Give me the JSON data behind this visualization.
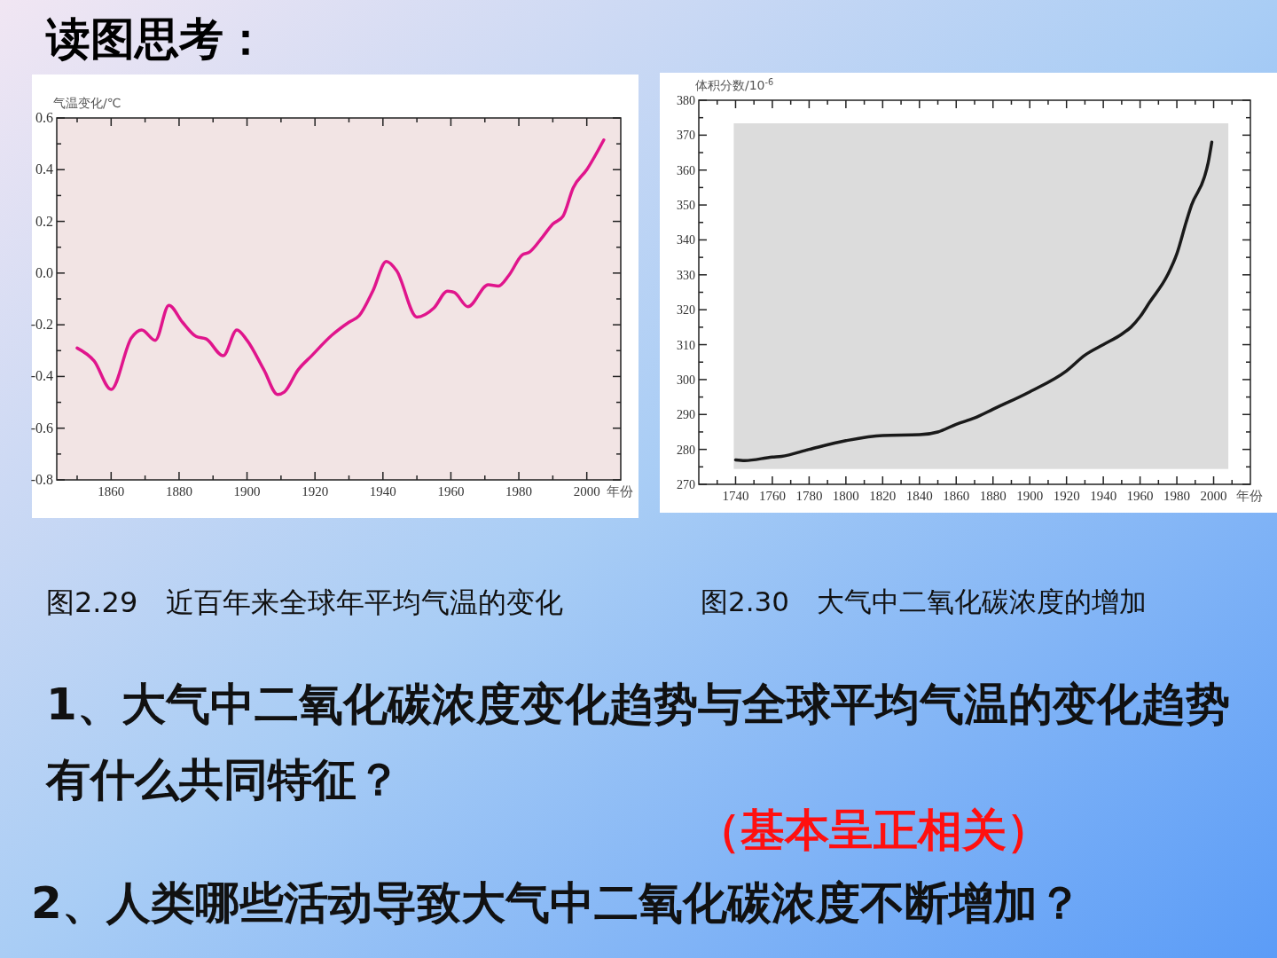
{
  "chart_data": [
    {
      "type": "line",
      "title": "读图思考：",
      "ylabel": "气温变化/℃",
      "xlabel": "年份",
      "annotations": [
        "图2.29　近百年来全球年平均气温的变化"
      ],
      "xlim": [
        1844,
        2010
      ],
      "xticks": [
        {
          "value": 1850,
          "label": null
        },
        1860,
        {
          "value": 1870,
          "label": null
        },
        1880,
        {
          "value": 1890,
          "label": null
        },
        1900,
        {
          "value": 1910,
          "label": null
        },
        1920,
        {
          "value": 1930,
          "label": null
        },
        1940,
        {
          "value": 1950,
          "label": null
        },
        1960,
        {
          "value": 1970,
          "label": null
        },
        1980,
        {
          "value": 1990,
          "label": null
        },
        2000
      ],
      "ylim": [
        -0.8,
        0.6
      ],
      "yticks": [
        -0.8,
        {
          "value": -0.7,
          "label": null
        },
        -0.6,
        {
          "value": -0.5,
          "label": null
        },
        -0.4,
        {
          "value": -0.3,
          "label": null
        },
        -0.2,
        {
          "value": -0.1,
          "label": null
        },
        {
          "value": 0,
          "label": "0.0"
        },
        {
          "value": 0.1,
          "label": null
        },
        0.2,
        {
          "value": 0.3,
          "label": null
        },
        0.4,
        {
          "value": 0.5,
          "label": null
        },
        0.6
      ],
      "series": [
        {
          "color": "#e0158c",
          "x": [
            1850,
            1855,
            1860,
            1866,
            1869,
            1873,
            1877,
            1881,
            1885,
            1888,
            1893,
            1897,
            1900,
            1905,
            1909,
            1911,
            1915,
            1919,
            1925,
            1930,
            1933,
            1937,
            1941,
            1944,
            1950,
            1955,
            1959,
            1961,
            1965,
            1971,
            1974,
            1977,
            1981,
            1983,
            1987,
            1990,
            1993,
            1996,
            2000,
            2005
          ],
          "values": [
            -0.29,
            -0.34,
            -0.45,
            -0.25,
            -0.22,
            -0.26,
            -0.125,
            -0.19,
            -0.245,
            -0.255,
            -0.32,
            -0.22,
            -0.26,
            -0.375,
            -0.47,
            -0.46,
            -0.375,
            -0.32,
            -0.24,
            -0.19,
            -0.165,
            -0.07,
            0.045,
            0.01,
            -0.17,
            -0.135,
            -0.07,
            -0.075,
            -0.13,
            -0.045,
            -0.05,
            -0.01,
            0.07,
            0.08,
            0.14,
            0.19,
            0.22,
            0.33,
            0.4,
            0.515
          ]
        }
      ]
    },
    {
      "type": "line",
      "ylabel": "体积分数/10$^{-6}$",
      "xlabel": "年份",
      "annotations": [
        "图2.30　大气中二氧化碳浓度的增加",
        "1、大气中二氧化碳浓度变化趋势与全球平均气温的变化趋势有什么共同特征？",
        "（基本呈正相关）",
        "2、人类哪些活动导致大气中二氧化碳浓度不断增加？"
      ],
      "bands": [
        {
          "axis": "x",
          "from": 1739,
          "to": 2008,
          "color": "#dcdcdc"
        }
      ],
      "xlim": [
        1720,
        2020
      ],
      "xticks": [
        {
          "value": 1730,
          "label": null
        },
        1740,
        {
          "value": 1750,
          "label": null
        },
        1760,
        {
          "value": 1770,
          "label": null
        },
        1780,
        {
          "value": 1790,
          "label": null
        },
        1800,
        {
          "value": 1810,
          "label": null
        },
        1820,
        {
          "value": 1830,
          "label": null
        },
        1840,
        {
          "value": 1850,
          "label": null
        },
        1860,
        {
          "value": 1870,
          "label": null
        },
        1880,
        {
          "value": 1890,
          "label": null
        },
        1900,
        {
          "value": 1910,
          "label": null
        },
        1920,
        {
          "value": 1930,
          "label": null
        },
        1940,
        {
          "value": 1950,
          "label": null
        },
        1960,
        {
          "value": 1970,
          "label": null
        },
        1980,
        {
          "value": 1990,
          "label": null
        },
        2000,
        {
          "value": 2010,
          "label": null
        }
      ],
      "ylim": [
        270,
        380
      ],
      "yticks": [
        270,
        {
          "value": 275,
          "label": null
        },
        280,
        {
          "value": 285,
          "label": null
        },
        290,
        {
          "value": 295,
          "label": null
        },
        300,
        {
          "value": 305,
          "label": null
        },
        310,
        {
          "value": 315,
          "label": null
        },
        320,
        {
          "value": 325,
          "label": null
        },
        330,
        {
          "value": 335,
          "label": null
        },
        340,
        {
          "value": 345,
          "label": null
        },
        350,
        {
          "value": 355,
          "label": null
        },
        360,
        {
          "value": 365,
          "label": null
        },
        370,
        {
          "value": 375,
          "label": null
        },
        380
      ],
      "series": [
        {
          "color": "#1a1a1a",
          "x": [
            1740,
            1745,
            1760,
            1765,
            1780,
            1800,
            1820,
            1840,
            1850,
            1860,
            1870,
            1880,
            1900,
            1920,
            1930,
            1940,
            1950,
            1955,
            1960,
            1965,
            1975,
            1980,
            1985,
            1988,
            1995,
            1997,
            1999
          ],
          "values": [
            277,
            276.8,
            277.8,
            278,
            280,
            282.5,
            284,
            284.2,
            285,
            287.2,
            289,
            291.5,
            296.5,
            302.5,
            307,
            310,
            313,
            315,
            318,
            322,
            330,
            336,
            345,
            350,
            358,
            362,
            368
          ]
        }
      ]
    }
  ]
}
